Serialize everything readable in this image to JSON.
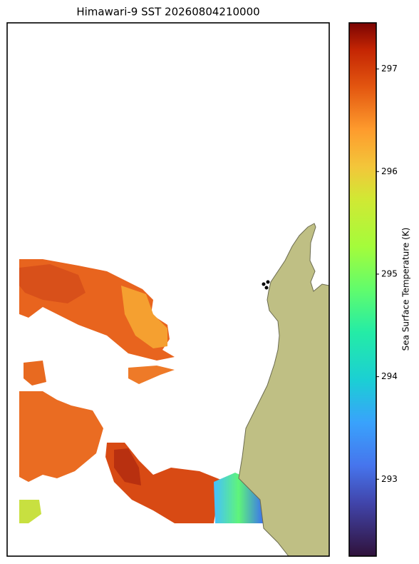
{
  "chart_data": {
    "type": "map",
    "title": "Himawari-9 SST 20260804210000",
    "colorbar_label": "Sea Surface Temperature (K)",
    "clim": [
      292.25,
      297.45
    ],
    "cticks": [
      293,
      294,
      295,
      296,
      297
    ]
  }
}
